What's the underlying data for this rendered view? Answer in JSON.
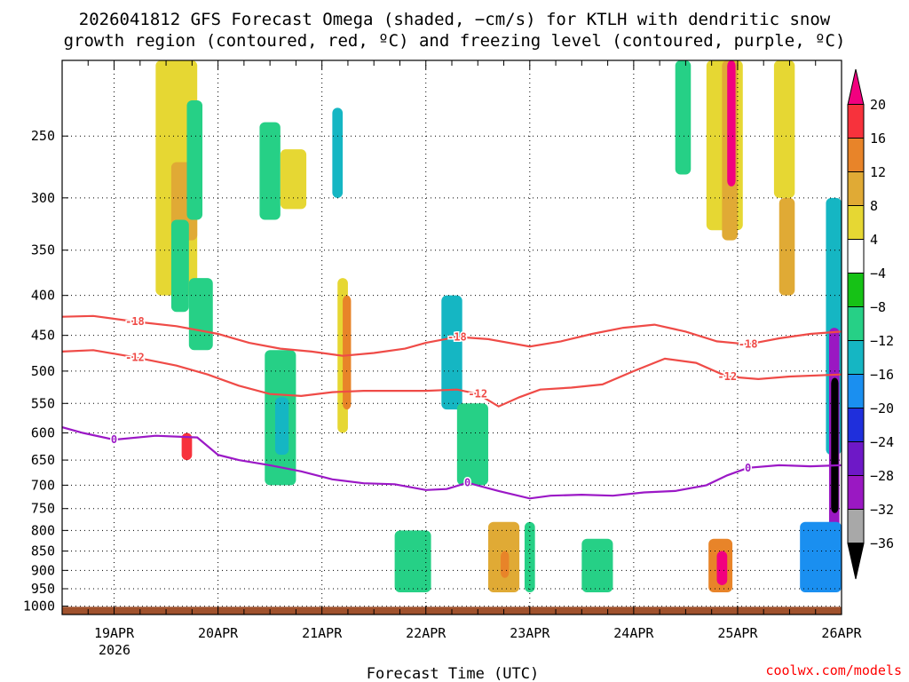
{
  "chart_data": {
    "type": "heatmap",
    "title_lines": [
      "2026041812 GFS Forecast Omega (shaded, −cm/s) for KTLH with dendritic snow",
      "growth region (contoured, red, ºC) and freezing level (contoured, purple, ºC)"
    ],
    "xlabel": "Forecast Time (UTC)",
    "credit": "coolwx.com/models",
    "year_label": "2026",
    "x_days": [
      "19APR",
      "20APR",
      "21APR",
      "22APR",
      "23APR",
      "24APR",
      "25APR",
      "26APR"
    ],
    "x_range_days": [
      -0.5,
      7.0
    ],
    "y_ticks": [
      250,
      300,
      350,
      400,
      450,
      500,
      550,
      600,
      650,
      700,
      750,
      800,
      850,
      900,
      950,
      1000
    ],
    "y_range_hpa": [
      200,
      1025
    ],
    "colorbar": {
      "labels": [
        "20",
        "16",
        "12",
        "8",
        "4",
        "−4",
        "−8",
        "−12",
        "−16",
        "−20",
        "−24",
        "−28",
        "−32",
        "−36"
      ],
      "colors": [
        "#f2007f",
        "#f7323c",
        "#e88429",
        "#e0aa35",
        "#e6d733",
        "#ffffff",
        "#16c216",
        "#26d086",
        "#15b6c3",
        "#1a8ff0",
        "#1f2fdc",
        "#6e18c7",
        "#9a18c2",
        "#a8a8a8",
        "#000000"
      ]
    },
    "contours": [
      {
        "label": "-18",
        "color": "#ef4b47",
        "x": [
          -0.5,
          -0.2,
          0.2,
          0.6,
          1.0,
          1.3,
          1.6,
          1.9,
          2.2,
          2.5,
          2.8,
          3.0,
          3.3,
          3.6,
          4.0,
          4.3,
          4.6,
          4.9,
          5.2,
          5.5,
          5.8,
          6.1,
          6.4,
          6.7,
          7.0
        ],
        "y": [
          426,
          425,
          432,
          438,
          448,
          460,
          468,
          472,
          478,
          474,
          468,
          460,
          452,
          455,
          465,
          458,
          448,
          440,
          436,
          445,
          458,
          462,
          454,
          448,
          445
        ]
      },
      {
        "label": "-12",
        "color": "#ef4b47",
        "x": [
          -0.5,
          -0.2,
          0.2,
          0.6,
          0.9,
          1.2,
          1.5,
          1.8,
          2.1,
          2.4,
          2.7,
          3.0,
          3.3,
          3.5,
          3.7,
          3.9,
          4.1,
          4.4,
          4.7,
          5.0,
          5.3,
          5.6,
          5.9,
          6.2,
          6.5,
          7.0
        ],
        "y": [
          472,
          470,
          480,
          492,
          505,
          522,
          535,
          538,
          532,
          530,
          530,
          530,
          528,
          535,
          555,
          540,
          528,
          525,
          520,
          500,
          482,
          488,
          508,
          512,
          508,
          505
        ]
      },
      {
        "label": "0",
        "color": "#9b18c6",
        "x": [
          -0.5,
          -0.3,
          0.0,
          0.4,
          0.8,
          1.0,
          1.2,
          1.5,
          1.8,
          2.1,
          2.4,
          2.7,
          3.0,
          3.2,
          3.4,
          3.7,
          4.0,
          4.2,
          4.5,
          4.8,
          5.1,
          5.4,
          5.7,
          5.9,
          6.1,
          6.4,
          6.7,
          7.0
        ],
        "y": [
          590,
          600,
          612,
          605,
          608,
          640,
          650,
          660,
          672,
          688,
          696,
          698,
          710,
          708,
          695,
          712,
          728,
          722,
          720,
          722,
          715,
          712,
          700,
          680,
          665,
          660,
          662,
          660
        ]
      }
    ],
    "shaded_regions": [
      {
        "x": [
          0.4,
          0.8
        ],
        "p": [
          200,
          400
        ],
        "value": 5
      },
      {
        "x": [
          0.55,
          0.8
        ],
        "p": [
          270,
          340
        ],
        "value": 8
      },
      {
        "x": [
          0.7,
          0.85
        ],
        "p": [
          225,
          320
        ],
        "value": -10
      },
      {
        "x": [
          0.55,
          0.72
        ],
        "p": [
          320,
          420
        ],
        "value": -8
      },
      {
        "x": [
          0.72,
          0.95
        ],
        "p": [
          380,
          470
        ],
        "value": -9
      },
      {
        "x": [
          0.65,
          0.75
        ],
        "p": [
          600,
          650
        ],
        "value": 18
      },
      {
        "x": [
          1.4,
          1.6
        ],
        "p": [
          240,
          320
        ],
        "value": -9
      },
      {
        "x": [
          1.6,
          1.85
        ],
        "p": [
          260,
          310
        ],
        "value": 6
      },
      {
        "x": [
          2.1,
          2.2
        ],
        "p": [
          230,
          300
        ],
        "value": -12
      },
      {
        "x": [
          2.15,
          2.25
        ],
        "p": [
          380,
          600
        ],
        "value": 6
      },
      {
        "x": [
          2.2,
          2.28
        ],
        "p": [
          400,
          560
        ],
        "value": 14
      },
      {
        "x": [
          1.45,
          1.75
        ],
        "p": [
          470,
          700
        ],
        "value": -8
      },
      {
        "x": [
          1.55,
          1.68
        ],
        "p": [
          540,
          640
        ],
        "value": -12
      },
      {
        "x": [
          3.15,
          3.35
        ],
        "p": [
          400,
          560
        ],
        "value": -14
      },
      {
        "x": [
          3.3,
          3.6
        ],
        "p": [
          550,
          700
        ],
        "value": -9
      },
      {
        "x": [
          2.7,
          3.05
        ],
        "p": [
          800,
          960
        ],
        "value": -9
      },
      {
        "x": [
          3.6,
          3.9
        ],
        "p": [
          780,
          960
        ],
        "value": 8
      },
      {
        "x": [
          3.72,
          3.8
        ],
        "p": [
          850,
          920
        ],
        "value": 14
      },
      {
        "x": [
          3.95,
          4.05
        ],
        "p": [
          780,
          960
        ],
        "value": -10
      },
      {
        "x": [
          4.5,
          4.8
        ],
        "p": [
          820,
          960
        ],
        "value": -10
      },
      {
        "x": [
          5.4,
          5.55
        ],
        "p": [
          200,
          280
        ],
        "value": -8
      },
      {
        "x": [
          5.7,
          6.05
        ],
        "p": [
          200,
          330
        ],
        "value": 6
      },
      {
        "x": [
          5.85,
          6.0
        ],
        "p": [
          200,
          340
        ],
        "value": 10
      },
      {
        "x": [
          5.9,
          5.98
        ],
        "p": [
          200,
          290
        ],
        "value": 20
      },
      {
        "x": [
          5.72,
          5.95
        ],
        "p": [
          820,
          960
        ],
        "value": 14
      },
      {
        "x": [
          5.8,
          5.9
        ],
        "p": [
          850,
          940
        ],
        "value": 20
      },
      {
        "x": [
          6.35,
          6.55
        ],
        "p": [
          200,
          300
        ],
        "value": 5
      },
      {
        "x": [
          6.4,
          6.55
        ],
        "p": [
          300,
          400
        ],
        "value": 8
      },
      {
        "x": [
          6.85,
          7.0
        ],
        "p": [
          300,
          640
        ],
        "value": -14
      },
      {
        "x": [
          6.88,
          6.98
        ],
        "p": [
          440,
          800
        ],
        "value": -28
      },
      {
        "x": [
          6.9,
          6.97
        ],
        "p": [
          510,
          760
        ],
        "value": -36
      },
      {
        "x": [
          6.6,
          7.0
        ],
        "p": [
          780,
          960
        ],
        "value": -16
      }
    ]
  }
}
